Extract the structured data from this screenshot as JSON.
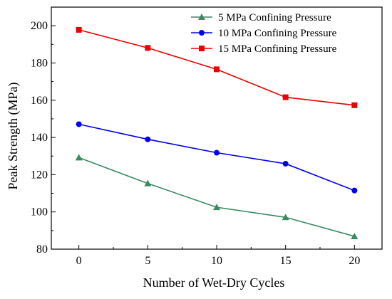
{
  "chart_data": {
    "type": "line",
    "title": "",
    "xlabel": "Number of Wet-Dry Cycles",
    "ylabel": "Peak Strength (MPa)",
    "x": [
      0,
      5,
      10,
      15,
      20
    ],
    "xlim": [
      -2,
      22
    ],
    "ylim": [
      80,
      210
    ],
    "xticks": [
      0,
      5,
      10,
      15,
      20
    ],
    "yticks": [
      80,
      100,
      120,
      140,
      160,
      180,
      200
    ],
    "grid": false,
    "legend_position": "top-right",
    "series": [
      {
        "name": "5 MPa Confining Pressure",
        "values": [
          129.2,
          115.3,
          102.5,
          97.1,
          86.9
        ],
        "color": "#3a8a62",
        "marker": "triangle"
      },
      {
        "name": "10 MPa Confining Pressure",
        "values": [
          147.1,
          139.0,
          131.8,
          125.9,
          111.5
        ],
        "color": "#0000ee",
        "marker": "circle"
      },
      {
        "name": "15 MPa Confining Pressure",
        "values": [
          197.8,
          188.1,
          176.6,
          161.6,
          157.3
        ],
        "color": "#ee0000",
        "marker": "square"
      }
    ]
  }
}
